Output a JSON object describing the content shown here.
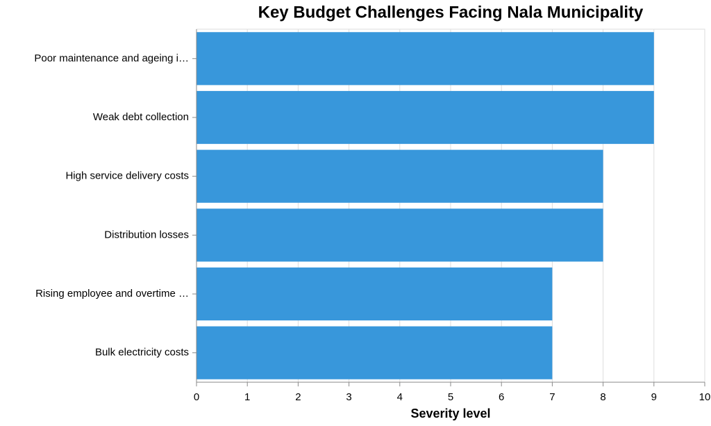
{
  "chart_data": {
    "type": "bar",
    "orientation": "horizontal",
    "title": "Key Budget Challenges Facing Nala Municipality",
    "x_label": "Severity level",
    "categories": [
      "Poor maintenance and ageing i…",
      "Weak debt collection",
      "High service delivery costs",
      "Distribution losses",
      "Rising employee and overtime …",
      "Bulk electricity costs"
    ],
    "values": [
      9,
      9,
      8,
      8,
      7,
      7
    ],
    "color": "#3897db",
    "xlim": [
      0,
      10
    ],
    "xticks": [
      0,
      1,
      2,
      3,
      4,
      5,
      6,
      7,
      8,
      9,
      10
    ],
    "grid": true
  }
}
